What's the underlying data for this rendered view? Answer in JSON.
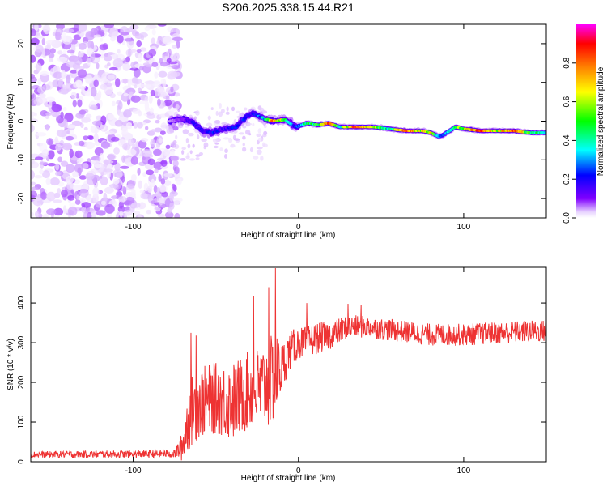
{
  "chart_data": [
    {
      "type": "heatmap",
      "title": "S206.2025.338.15.44.R21",
      "xlabel": "Height of straight line (km)",
      "ylabel": "Frequency (Hz)",
      "xlim": [
        -162,
        150
      ],
      "ylim": [
        -25,
        25
      ],
      "xticks": [
        -100,
        0,
        100
      ],
      "yticks": [
        -20,
        -10,
        0,
        10,
        20
      ],
      "xtick_labels": [
        "-100",
        "0",
        "100"
      ],
      "ytick_labels": [
        "-20",
        "-10",
        "0",
        "10",
        "20"
      ],
      "colorbar": {
        "label": "Normalized spectral amplitude",
        "range": [
          0,
          1
        ],
        "ticks": [
          0.0,
          0.2,
          0.4,
          0.6,
          0.8
        ],
        "tick_labels": [
          "0.0",
          "0.2",
          "0.4",
          "0.6",
          "0.8"
        ],
        "colors": [
          "#ffffff",
          "#d9b3ff",
          "#8000ff",
          "#0000ff",
          "#00ffff",
          "#00ff00",
          "#ffff00",
          "#ff8000",
          "#ff0000",
          "#ff00ff"
        ]
      },
      "noise_region_x": [
        -162,
        -78
      ],
      "ridge": {
        "x": [
          -78,
          -70,
          -65,
          -58,
          -52,
          -45,
          -38,
          -32,
          -28,
          -20,
          -15,
          -8,
          -2,
          2,
          5,
          12,
          18,
          25,
          35,
          45,
          55,
          65,
          75,
          80,
          85,
          88,
          95,
          100,
          110,
          120,
          130,
          140,
          150
        ],
        "y": [
          0,
          0.5,
          0,
          -2.5,
          -3,
          -2,
          -1.5,
          1,
          2,
          0.5,
          0,
          0.3,
          -1.5,
          -1,
          -0.5,
          -1,
          -0.5,
          -1.5,
          -1.5,
          -1.5,
          -2,
          -2.5,
          -2.5,
          -3,
          -4,
          -3.5,
          -1.5,
          -2,
          -2.5,
          -2.5,
          -2.5,
          -3,
          -3
        ],
        "amplitude": [
          0.15,
          0.25,
          0.3,
          0.3,
          0.35,
          0.3,
          0.35,
          0.35,
          0.3,
          0.5,
          0.9,
          0.6,
          0.35,
          0.45,
          0.55,
          0.6,
          0.9,
          0.5,
          0.95,
          0.7,
          0.5,
          0.9,
          0.7,
          0.75,
          0.4,
          0.4,
          0.6,
          0.7,
          0.9,
          0.7,
          0.9,
          0.6,
          0.5
        ]
      }
    },
    {
      "type": "line",
      "xlabel": "Height of straight line (km)",
      "ylabel": "SNR (10 * v/v)",
      "xlim": [
        -162,
        150
      ],
      "ylim": [
        0,
        490
      ],
      "xticks": [
        -100,
        0,
        100
      ],
      "yticks": [
        0,
        100,
        200,
        300,
        400
      ],
      "xtick_labels": [
        "-100",
        "0",
        "100"
      ],
      "ytick_labels": [
        "0",
        "100",
        "200",
        "300",
        "400"
      ],
      "series": [
        {
          "name": "SNR",
          "color": "#ee3333",
          "x_range": [
            -162,
            150
          ],
          "envelope": {
            "x": [
              -162,
              -75,
              -70,
              -66,
              -60,
              -50,
              -40,
              -30,
              -20,
              -14,
              -10,
              -5,
              0,
              5,
              10,
              20,
              30,
              40,
              60,
              80,
              100,
              120,
              150
            ],
            "mean": [
              18,
              20,
              40,
              120,
              150,
              160,
              150,
              180,
              190,
              210,
              240,
              280,
              300,
              300,
              310,
              320,
              340,
              340,
              330,
              320,
              320,
              325,
              330
            ],
            "spread": [
              8,
              10,
              40,
              90,
              90,
              90,
              100,
              100,
              110,
              120,
              60,
              50,
              40,
              40,
              40,
              35,
              30,
              28,
              28,
              28,
              28,
              28,
              28
            ]
          },
          "peaks": [
            {
              "x": -65,
              "y": 325
            },
            {
              "x": -62,
              "y": 318
            },
            {
              "x": -27,
              "y": 418
            },
            {
              "x": -18,
              "y": 440
            },
            {
              "x": -14,
              "y": 488
            },
            {
              "x": 5,
              "y": 400
            },
            {
              "x": 30,
              "y": 398
            },
            {
              "x": 38,
              "y": 395
            }
          ]
        }
      ]
    }
  ]
}
